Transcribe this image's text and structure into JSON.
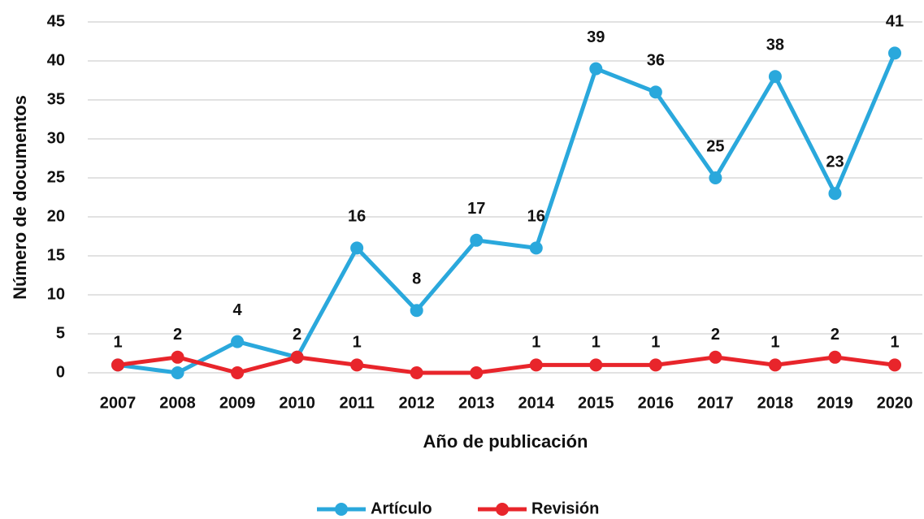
{
  "chart_data": {
    "type": "line",
    "x_label": "Año de publicación",
    "y_label": "Número de documentos",
    "categories": [
      "2007",
      "2008",
      "2009",
      "2010",
      "2011",
      "2012",
      "2013",
      "2014",
      "2015",
      "2016",
      "2017",
      "2018",
      "2019",
      "2020"
    ],
    "series": [
      {
        "name": "Artículo",
        "color": "#2aa8dc",
        "values": [
          1,
          0,
          4,
          2,
          16,
          8,
          17,
          16,
          39,
          36,
          25,
          38,
          23,
          41
        ],
        "value_labels": [
          null,
          null,
          "4",
          null,
          "16",
          "8",
          "17",
          "16",
          "39",
          "36",
          "25",
          "38",
          "23",
          "41"
        ]
      },
      {
        "name": "Revisión",
        "color": "#e8252b",
        "values": [
          1,
          2,
          0,
          2,
          1,
          0,
          0,
          1,
          1,
          1,
          2,
          1,
          2,
          1
        ],
        "value_labels": [
          "1",
          "2",
          null,
          "2",
          "1",
          null,
          null,
          "1",
          "1",
          "1",
          "2",
          "1",
          "2",
          "1"
        ]
      }
    ],
    "ylim": [
      0,
      45
    ],
    "yticks": [
      0,
      5,
      10,
      15,
      20,
      25,
      30,
      35,
      40,
      45
    ],
    "grid": true,
    "legend": "bottom"
  }
}
